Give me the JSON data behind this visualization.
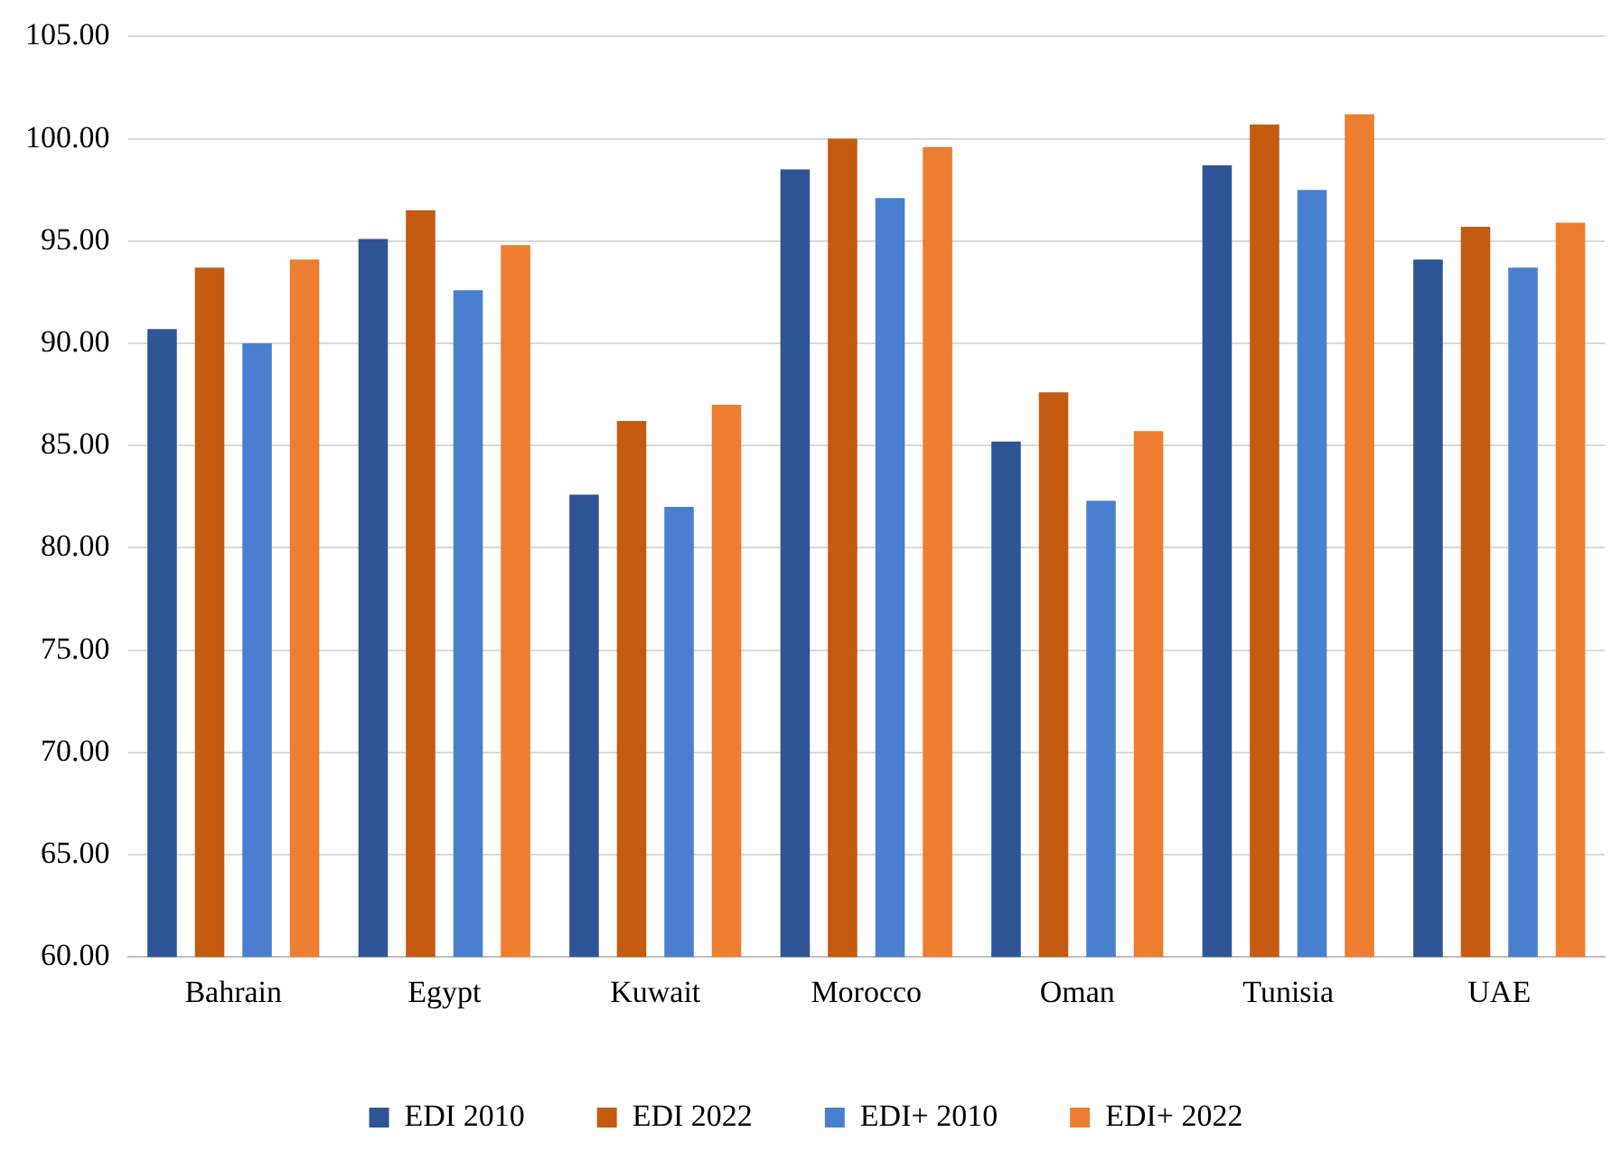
{
  "chart_data": {
    "type": "bar",
    "categories": [
      "Bahrain",
      "Egypt",
      "Kuwait",
      "Morocco",
      "Oman",
      "Tunisia",
      "UAE"
    ],
    "series": [
      {
        "name": "EDI 2010",
        "color": "#2f5597",
        "values": [
          90.7,
          95.1,
          82.6,
          98.5,
          85.2,
          98.7,
          94.1
        ]
      },
      {
        "name": "EDI 2022",
        "color": "#c55a11",
        "values": [
          93.7,
          96.5,
          86.2,
          100.0,
          87.6,
          100.7,
          95.7
        ]
      },
      {
        "name": "EDI+ 2010",
        "color": "#4a7fcf",
        "values": [
          90.0,
          92.6,
          82.0,
          97.1,
          82.3,
          97.5,
          93.7
        ]
      },
      {
        "name": "EDI+ 2022",
        "color": "#ed7d31",
        "values": [
          94.1,
          94.8,
          87.0,
          99.6,
          85.7,
          101.2,
          95.9
        ]
      }
    ],
    "ylim": [
      60,
      105
    ],
    "yticks": [
      {
        "value": 60,
        "label": "60.00"
      },
      {
        "value": 65,
        "label": "65.00"
      },
      {
        "value": 70,
        "label": "70.00"
      },
      {
        "value": 75,
        "label": "75.00"
      },
      {
        "value": 80,
        "label": "80.00"
      },
      {
        "value": 85,
        "label": "85.00"
      },
      {
        "value": 90,
        "label": "90.00"
      },
      {
        "value": 95,
        "label": "95.00"
      },
      {
        "value": 100,
        "label": "100.00"
      },
      {
        "value": 105,
        "label": "105.00"
      }
    ],
    "grid": "y",
    "legend": "bottom"
  }
}
